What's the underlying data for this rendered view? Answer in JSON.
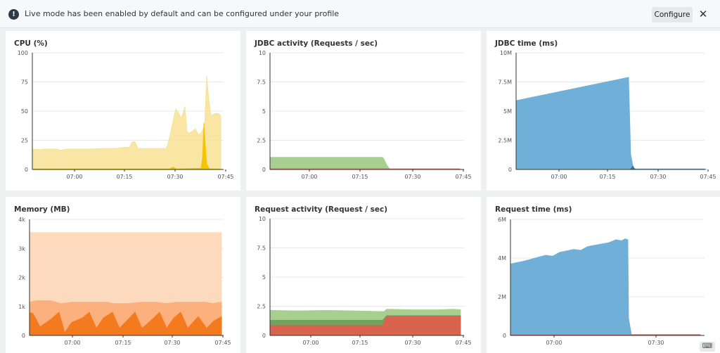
{
  "banner": {
    "icon": "alert-circle-icon",
    "message": "Live mode has been enabled by default and can be configured under your profile",
    "configure_label": "Configure",
    "close_icon": "close-icon"
  },
  "keyboard_icon": "keyboard-icon",
  "panels": [
    {
      "title": "CPU (%)",
      "chart_data": {
        "type": "area",
        "title": "CPU (%)",
        "ylim": [
          0,
          100
        ],
        "y_ticks": [
          "0",
          "25",
          "50",
          "75",
          "100"
        ],
        "x_ticks": [
          "07:00",
          "07:15",
          "07:30",
          "07:45"
        ],
        "series": [
          {
            "color": "#f8e08e",
            "opacity": 0.8,
            "points": [
              [
                0,
                17.5
              ],
              [
                13,
                17
              ],
              [
                15,
                17.5
              ],
              [
                35,
                17.5
              ],
              [
                40,
                16.5
              ],
              [
                50,
                17.5
              ],
              [
                80,
                17.5
              ],
              [
                100,
                18
              ],
              [
                120,
                18
              ],
              [
                130,
                19
              ],
              [
                138,
                19
              ],
              [
                142,
                23.5
              ],
              [
                146,
                24
              ],
              [
                150,
                18
              ],
              [
                160,
                18
              ],
              [
                180,
                18
              ],
              [
                185,
                18
              ],
              [
                190,
                18
              ],
              [
                192,
                20
              ],
              [
                196,
                30
              ],
              [
                201,
                44
              ],
              [
                204,
                52
              ],
              [
                208,
                48
              ],
              [
                212,
                44
              ],
              [
                216,
                52
              ],
              [
                217,
                54
              ],
              [
                220,
                32
              ],
              [
                223,
                31
              ],
              [
                228,
                33
              ],
              [
                232,
                35
              ],
              [
                236,
                30
              ],
              [
                240,
                31
              ],
              [
                245,
                38
              ],
              [
                248,
                80
              ],
              [
                251,
                60
              ],
              [
                254,
                46
              ],
              [
                256,
                47
              ],
              [
                260,
                48
              ],
              [
                264,
                48
              ],
              [
                268,
                46
              ]
            ]
          },
          {
            "color": "#f5c400",
            "opacity": 1,
            "points": [
              [
                0,
                0.5
              ],
              [
                195,
                0.5
              ],
              [
                200,
                2
              ],
              [
                205,
                0.5
              ],
              [
                240,
                1
              ],
              [
                242,
                10
              ],
              [
                244,
                40
              ],
              [
                246,
                20
              ],
              [
                248,
                5
              ],
              [
                251,
                1
              ],
              [
                254,
                0.5
              ],
              [
                268,
                0.5
              ]
            ]
          }
        ]
      }
    },
    {
      "title": "JDBC activity (Requests / sec)",
      "chart_data": {
        "type": "area",
        "title": "JDBC activity (Requests / sec)",
        "ylim": [
          0,
          10
        ],
        "y_ticks": [
          "0",
          "2.5",
          "5",
          "7.5",
          "10"
        ],
        "x_ticks": [
          "07:00",
          "07:15",
          "07:30",
          "07:45"
        ],
        "series": [
          {
            "color": "#a8cf8f",
            "opacity": 1,
            "points": [
              [
                0,
                1.05
              ],
              [
                80,
                1.05
              ],
              [
                160,
                1.05
              ],
              [
                162,
                0.9
              ],
              [
                166,
                0.4
              ],
              [
                170,
                0.05
              ],
              [
                270,
                0.05
              ]
            ]
          },
          {
            "color": "#d9634c",
            "opacity": 1,
            "points": [
              [
                0,
                0.05
              ],
              [
                270,
                0.05
              ]
            ]
          }
        ]
      }
    },
    {
      "title": "JDBC time (ms)",
      "chart_data": {
        "type": "area",
        "title": "JDBC time (ms)",
        "ylim": [
          0,
          10000000
        ],
        "y_ticks": [
          "0",
          "2.5M",
          "5M",
          "7.5M",
          "10M"
        ],
        "x_ticks": [
          "07:00",
          "07:15",
          "07:30",
          "07:45"
        ],
        "series": [
          {
            "color": "#70b0d8",
            "opacity": 1,
            "points": [
              [
                0,
                5900000
              ],
              [
                160,
                7900000
              ],
              [
                163,
                1300000
              ],
              [
                167,
                50000
              ],
              [
                270,
                50000
              ]
            ]
          },
          {
            "color": "#2e75a8",
            "opacity": 1,
            "points": [
              [
                0,
                0
              ],
              [
                162,
                0
              ],
              [
                164,
                100000
              ],
              [
                166,
                300000
              ],
              [
                168,
                100000
              ],
              [
                170,
                0
              ],
              [
                270,
                0
              ]
            ]
          }
        ]
      }
    },
    {
      "title": "Memory (MB)",
      "chart_data": {
        "type": "area",
        "title": "Memory (MB)",
        "ylim": [
          0,
          4000
        ],
        "y_ticks": [
          "0",
          "1k",
          "2k",
          "3k",
          "4k"
        ],
        "x_ticks": [
          "07:00",
          "07:15",
          "07:30",
          "07:45"
        ],
        "series": [
          {
            "color": "#fdd9bd",
            "opacity": 1,
            "points": [
              [
                0,
                3550
              ],
              [
                273,
                3550
              ]
            ]
          },
          {
            "color": "#fbb07e",
            "opacity": 1,
            "points": [
              [
                0,
                1150
              ],
              [
                10,
                1200
              ],
              [
                30,
                1200
              ],
              [
                45,
                1100
              ],
              [
                60,
                1150
              ],
              [
                80,
                1150
              ],
              [
                95,
                1150
              ],
              [
                110,
                1150
              ],
              [
                120,
                1100
              ],
              [
                140,
                1100
              ],
              [
                160,
                1150
              ],
              [
                180,
                1150
              ],
              [
                195,
                1100
              ],
              [
                210,
                1150
              ],
              [
                230,
                1150
              ],
              [
                250,
                1150
              ],
              [
                260,
                1100
              ],
              [
                273,
                1150
              ]
            ]
          },
          {
            "color": "#f47a1f",
            "opacity": 1,
            "points": [
              [
                0,
                800
              ],
              [
                5,
                750
              ],
              [
                15,
                300
              ],
              [
                30,
                550
              ],
              [
                42,
                800
              ],
              [
                50,
                100
              ],
              [
                60,
                450
              ],
              [
                75,
                600
              ],
              [
                85,
                800
              ],
              [
                95,
                250
              ],
              [
                105,
                600
              ],
              [
                118,
                800
              ],
              [
                128,
                250
              ],
              [
                138,
                500
              ],
              [
                150,
                800
              ],
              [
                160,
                250
              ],
              [
                172,
                500
              ],
              [
                185,
                800
              ],
              [
                195,
                250
              ],
              [
                205,
                600
              ],
              [
                215,
                800
              ],
              [
                225,
                250
              ],
              [
                240,
                650
              ],
              [
                252,
                250
              ],
              [
                262,
                500
              ],
              [
                273,
                650
              ]
            ]
          }
        ]
      }
    },
    {
      "title": "Request activity (Request / sec)",
      "chart_data": {
        "type": "area",
        "title": "Request activity (Request / sec)",
        "ylim": [
          0,
          10
        ],
        "y_ticks": [
          "0",
          "2.5",
          "5",
          "7.5",
          "10"
        ],
        "x_ticks": [
          "07:00",
          "07:15",
          "07:30",
          "07:45"
        ],
        "series": [
          {
            "color": "#a8cf8f",
            "opacity": 1,
            "points": [
              [
                0,
                2.15
              ],
              [
                40,
                2.1
              ],
              [
                80,
                2.15
              ],
              [
                120,
                2.1
              ],
              [
                162,
                2.05
              ],
              [
                166,
                2.25
              ],
              [
                200,
                2.2
              ],
              [
                240,
                2.2
              ],
              [
                260,
                2.25
              ],
              [
                271,
                2.2
              ]
            ]
          },
          {
            "color": "#6fa25c",
            "opacity": 1,
            "points": [
              [
                0,
                1.3
              ],
              [
                80,
                1.3
              ],
              [
                160,
                1.3
              ],
              [
                166,
                1.7
              ],
              [
                200,
                1.7
              ],
              [
                271,
                1.7
              ]
            ]
          },
          {
            "color": "#d9634c",
            "opacity": 1,
            "points": [
              [
                0,
                0.85
              ],
              [
                80,
                0.85
              ],
              [
                160,
                0.85
              ],
              [
                166,
                1.65
              ],
              [
                200,
                1.65
              ],
              [
                271,
                1.65
              ]
            ]
          }
        ]
      }
    },
    {
      "title": "Request time (ms)",
      "chart_data": {
        "type": "area",
        "title": "Request time (ms)",
        "ylim": [
          0,
          6000000
        ],
        "y_ticks": [
          "0",
          "2M",
          "4M",
          "6M"
        ],
        "x_ticks": [
          "07:00",
          "07:30"
        ],
        "series": [
          {
            "color": "#70b0d8",
            "opacity": 1,
            "points": [
              [
                0,
                3700000
              ],
              [
                20,
                3850000
              ],
              [
                35,
                4000000
              ],
              [
                50,
                4150000
              ],
              [
                60,
                4100000
              ],
              [
                70,
                4300000
              ],
              [
                90,
                4450000
              ],
              [
                100,
                4400000
              ],
              [
                110,
                4600000
              ],
              [
                125,
                4700000
              ],
              [
                140,
                4800000
              ],
              [
                150,
                4950000
              ],
              [
                158,
                4900000
              ],
              [
                163,
                5000000
              ],
              [
                167,
                4950000
              ],
              [
                168,
                900000
              ],
              [
                172,
                50000
              ],
              [
                270,
                50000
              ]
            ]
          },
          {
            "color": "#c0504d",
            "opacity": 1,
            "points": [
              [
                0,
                20000
              ],
              [
                270,
                20000
              ]
            ]
          }
        ]
      }
    }
  ]
}
